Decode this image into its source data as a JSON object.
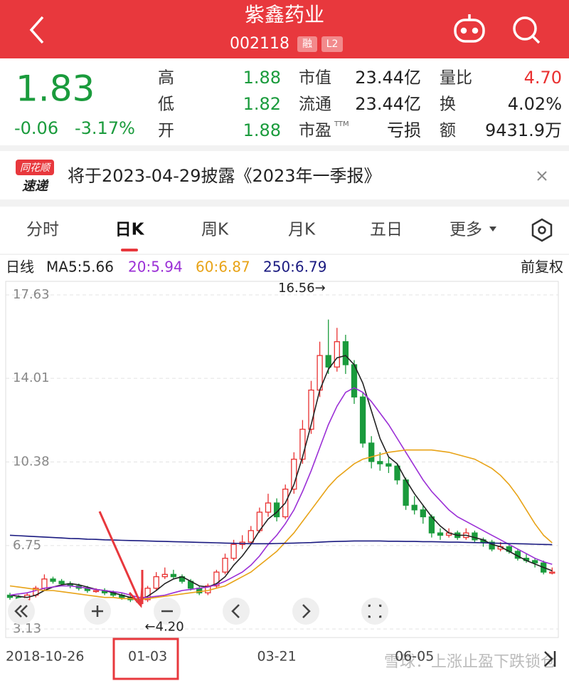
{
  "header": {
    "title": "紫鑫药业",
    "code": "002118",
    "badges": [
      "融",
      "L2"
    ]
  },
  "quote": {
    "price": "1.83",
    "change": "-0.06",
    "change_pct": "-3.17%",
    "stats": [
      {
        "label": "高",
        "value": "1.88"
      },
      {
        "label": "低",
        "value": "1.82"
      },
      {
        "label": "开",
        "value": "1.88"
      },
      {
        "label": "市值",
        "value": "23.44亿"
      },
      {
        "label": "流通",
        "value": "23.44亿"
      },
      {
        "label": "市盈",
        "sup": "TTM",
        "value": "亏损"
      },
      {
        "label": "量比",
        "value": "4.70"
      },
      {
        "label": "换",
        "value": "4.02%"
      },
      {
        "label": "额",
        "value": "9431.9万"
      }
    ]
  },
  "news": {
    "logo_top": "同花顺",
    "logo_bottom": "速递",
    "text": "将于2023-04-29披露《2023年一季报》"
  },
  "tabs": [
    "分时",
    "日K",
    "周K",
    "月K",
    "五日",
    "更多"
  ],
  "chart_data": {
    "type": "candlestick",
    "title": "日线",
    "adjustment": "前复权",
    "up_color": "#e93030",
    "down_color": "#1a9b3c",
    "categories": [
      "2018-10-26",
      null,
      null,
      null,
      null,
      null,
      null,
      null,
      null,
      null,
      null,
      null,
      null,
      null,
      null,
      null,
      "01-03",
      null,
      null,
      null,
      null,
      null,
      null,
      null,
      null,
      null,
      null,
      null,
      null,
      null,
      null,
      "03-21",
      null,
      null,
      null,
      null,
      null,
      null,
      null,
      null,
      null,
      null,
      null,
      null,
      null,
      null,
      null,
      "06-05",
      null,
      null,
      null,
      null,
      null,
      null,
      null,
      null,
      null,
      null,
      null,
      null,
      null,
      null,
      null,
      null
    ],
    "open": [
      4.6,
      4.5,
      4.4,
      4.6,
      4.9,
      5.3,
      5.2,
      5.1,
      5.0,
      4.9,
      4.8,
      4.8,
      4.7,
      4.6,
      4.5,
      4.4,
      4.4,
      4.9,
      5.4,
      5.5,
      5.4,
      5.2,
      4.9,
      4.7,
      5.0,
      5.6,
      6.2,
      6.8,
      6.9,
      7.4,
      8.2,
      8.6,
      8.0,
      9.2,
      10.5,
      11.8,
      13.5,
      15.0,
      14.5,
      15.6,
      14.6,
      13.2,
      11.2,
      10.4,
      10.3,
      10.2,
      9.6,
      8.5,
      8.3,
      8.0,
      7.3,
      7.2,
      7.3,
      7.1,
      7.3,
      7.0,
      6.9,
      6.6,
      6.7,
      6.5,
      6.2,
      6.1,
      6.0,
      5.6
    ],
    "high": [
      4.7,
      4.6,
      4.7,
      5.0,
      5.5,
      5.4,
      5.3,
      5.2,
      5.1,
      5.0,
      4.9,
      4.9,
      4.8,
      4.7,
      4.6,
      4.5,
      5.0,
      5.6,
      5.8,
      5.7,
      5.5,
      5.3,
      5.0,
      5.1,
      5.7,
      6.4,
      7.0,
      7.2,
      7.6,
      8.4,
      9.0,
      8.8,
      9.4,
      10.8,
      12.2,
      13.9,
      15.6,
      16.56,
      16.2,
      15.9,
      14.8,
      13.4,
      11.5,
      10.8,
      10.6,
      10.3,
      9.7,
      8.9,
      8.5,
      8.1,
      7.5,
      7.5,
      7.4,
      7.5,
      7.4,
      7.1,
      7.0,
      6.9,
      6.8,
      6.6,
      6.4,
      6.2,
      6.1,
      5.8
    ],
    "low": [
      4.4,
      4.3,
      4.4,
      4.5,
      4.8,
      5.1,
      5.0,
      4.9,
      4.8,
      4.7,
      4.7,
      4.6,
      4.5,
      4.4,
      4.3,
      4.2,
      4.3,
      4.8,
      5.3,
      5.3,
      5.1,
      4.8,
      4.6,
      4.6,
      4.9,
      5.5,
      6.1,
      6.6,
      6.8,
      7.3,
      8.0,
      7.8,
      7.9,
      9.0,
      10.3,
      11.6,
      13.2,
      14.2,
      14.3,
      14.2,
      12.9,
      11.0,
      10.1,
      10.0,
      9.9,
      9.4,
      8.3,
      8.1,
      7.7,
      7.1,
      7.0,
      7.1,
      7.0,
      7.0,
      6.9,
      6.7,
      6.5,
      6.5,
      6.4,
      6.1,
      6.0,
      5.8,
      5.5,
      5.5
    ],
    "close": [
      4.5,
      4.4,
      4.6,
      4.9,
      5.3,
      5.2,
      5.1,
      5.0,
      4.9,
      4.8,
      4.8,
      4.7,
      4.6,
      4.5,
      4.4,
      4.3,
      4.9,
      5.4,
      5.5,
      5.4,
      5.2,
      4.9,
      4.7,
      5.0,
      5.6,
      6.2,
      6.8,
      6.9,
      7.4,
      8.2,
      8.6,
      8.0,
      9.2,
      10.5,
      11.8,
      13.5,
      15.0,
      14.5,
      15.6,
      14.6,
      13.2,
      11.2,
      10.4,
      10.3,
      10.2,
      9.6,
      8.5,
      8.3,
      8.0,
      7.3,
      7.2,
      7.3,
      7.1,
      7.3,
      7.0,
      6.9,
      6.6,
      6.7,
      6.5,
      6.2,
      6.1,
      6.0,
      5.6,
      5.6
    ],
    "series": [
      {
        "name": "MA5:5.66",
        "color": "#222222",
        "values": [
          4.6,
          4.55,
          4.5,
          4.6,
          4.8,
          4.95,
          5.05,
          5.1,
          5.05,
          4.95,
          4.85,
          4.8,
          4.7,
          4.6,
          4.5,
          4.4,
          4.55,
          4.8,
          5.1,
          5.3,
          5.4,
          5.2,
          5.0,
          4.95,
          5.1,
          5.4,
          5.9,
          6.3,
          6.8,
          7.4,
          7.9,
          8.2,
          8.6,
          9.4,
          10.6,
          12.0,
          13.5,
          14.4,
          14.9,
          15.0,
          14.6,
          13.8,
          12.6,
          11.4,
          10.6,
          10.3,
          9.6,
          9.0,
          8.5,
          8.0,
          7.6,
          7.3,
          7.2,
          7.2,
          7.1,
          7.0,
          6.8,
          6.7,
          6.5,
          6.3,
          6.1,
          5.95,
          5.8,
          5.66
        ]
      },
      {
        "name": "20:5.94",
        "color": "#9b2fd6",
        "values": [
          4.6,
          4.65,
          4.7,
          4.8,
          4.9,
          4.95,
          5.0,
          5.0,
          4.95,
          4.9,
          4.85,
          4.8,
          4.75,
          4.7,
          4.6,
          4.5,
          4.5,
          4.55,
          4.6,
          4.7,
          4.8,
          4.85,
          4.9,
          4.95,
          5.05,
          5.2,
          5.4,
          5.6,
          5.9,
          6.3,
          6.8,
          7.2,
          7.7,
          8.3,
          9.1,
          10.0,
          11.0,
          12.0,
          12.8,
          13.4,
          13.6,
          13.4,
          13.0,
          12.5,
          12.0,
          11.4,
          10.8,
          10.2,
          9.6,
          9.1,
          8.7,
          8.3,
          8.0,
          7.8,
          7.6,
          7.4,
          7.2,
          7.0,
          6.8,
          6.6,
          6.4,
          6.2,
          6.05,
          5.94
        ]
      },
      {
        "name": "60:6.87",
        "color": "#e8a317",
        "values": [
          5.0,
          4.95,
          4.9,
          4.85,
          4.8,
          4.8,
          4.75,
          4.7,
          4.65,
          4.6,
          4.55,
          4.5,
          4.5,
          4.45,
          4.45,
          4.4,
          4.45,
          4.5,
          4.55,
          4.6,
          4.65,
          4.7,
          4.75,
          4.8,
          4.9,
          5.0,
          5.2,
          5.4,
          5.6,
          5.9,
          6.2,
          6.5,
          6.9,
          7.3,
          7.8,
          8.3,
          8.8,
          9.3,
          9.7,
          10.0,
          10.3,
          10.5,
          10.6,
          10.7,
          10.8,
          10.85,
          10.9,
          10.9,
          10.9,
          10.9,
          10.85,
          10.8,
          10.7,
          10.6,
          10.5,
          10.3,
          10.1,
          9.8,
          9.4,
          8.9,
          8.3,
          7.7,
          7.2,
          6.87
        ]
      },
      {
        "name": "250:6.79",
        "color": "#1a1a80",
        "values": [
          7.2,
          7.18,
          7.16,
          7.14,
          7.12,
          7.1,
          7.08,
          7.06,
          7.05,
          7.03,
          7.02,
          7.0,
          6.99,
          6.98,
          6.97,
          6.96,
          6.95,
          6.94,
          6.93,
          6.92,
          6.91,
          6.9,
          6.89,
          6.88,
          6.87,
          6.86,
          6.85,
          6.84,
          6.83,
          6.83,
          6.83,
          6.84,
          6.85,
          6.86,
          6.87,
          6.88,
          6.9,
          6.92,
          6.93,
          6.94,
          6.95,
          6.95,
          6.95,
          6.95,
          6.94,
          6.94,
          6.93,
          6.93,
          6.92,
          6.92,
          6.91,
          6.9,
          6.9,
          6.89,
          6.88,
          6.87,
          6.86,
          6.85,
          6.84,
          6.83,
          6.82,
          6.81,
          6.8,
          6.79
        ]
      }
    ],
    "ylim": [
      3.13,
      17.63
    ],
    "yticks": [
      17.63,
      14.01,
      10.38,
      6.75,
      3.13
    ],
    "grid": true,
    "annotations": [
      "16.56→",
      "←4.20"
    ],
    "watermark": "雪球：上涨止盈下跌锁仓"
  }
}
